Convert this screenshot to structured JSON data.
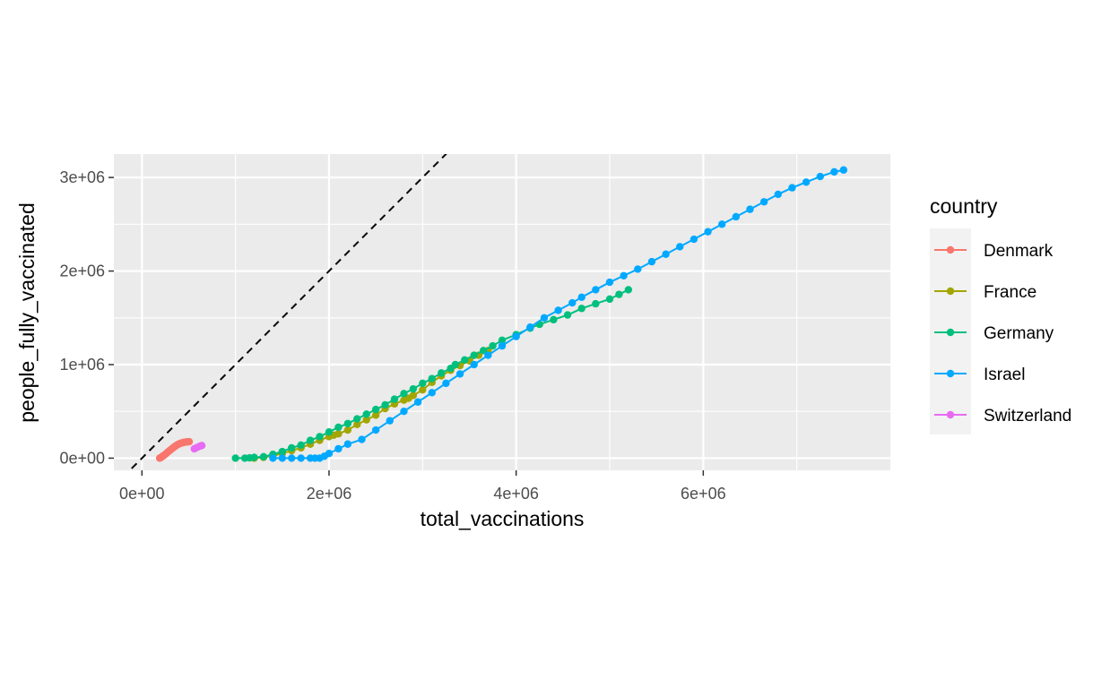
{
  "chart_data": {
    "type": "line",
    "title": "",
    "xlabel": "total_vaccinations",
    "ylabel": "people_fully_vaccinated",
    "xlim": [
      -300000,
      8000000
    ],
    "ylim": [
      -130000,
      3250000
    ],
    "x_ticks": [
      0,
      2000000,
      4000000,
      6000000
    ],
    "x_tick_labels": [
      "0e+00",
      "2e+06",
      "4e+06",
      "6e+06"
    ],
    "y_ticks": [
      0,
      1000000,
      2000000,
      3000000
    ],
    "y_tick_labels": [
      "0e+00",
      "1e+06",
      "2e+06",
      "3e+06"
    ],
    "grid": true,
    "legend": {
      "title": "country",
      "position": "right"
    },
    "reference_line": {
      "slope": 1,
      "intercept": 0,
      "style": "dashed",
      "color": "#000000"
    },
    "series": [
      {
        "name": "Denmark",
        "color": "#F8766D",
        "points": [
          [
            190000,
            0
          ],
          [
            200000,
            5000
          ],
          [
            210000,
            12000
          ],
          [
            220000,
            20000
          ],
          [
            235000,
            30000
          ],
          [
            250000,
            42000
          ],
          [
            265000,
            55000
          ],
          [
            280000,
            68000
          ],
          [
            295000,
            80000
          ],
          [
            310000,
            92000
          ],
          [
            325000,
            104000
          ],
          [
            340000,
            116000
          ],
          [
            355000,
            127000
          ],
          [
            370000,
            137000
          ],
          [
            385000,
            146000
          ],
          [
            400000,
            153000
          ],
          [
            415000,
            159000
          ],
          [
            430000,
            164000
          ],
          [
            445000,
            168000
          ],
          [
            460000,
            171000
          ],
          [
            475000,
            173000
          ],
          [
            490000,
            175000
          ],
          [
            505000,
            176000
          ]
        ]
      },
      {
        "name": "France",
        "color": "#A3A500",
        "points": [
          [
            1200000,
            0
          ],
          [
            1300000,
            8000
          ],
          [
            1400000,
            25000
          ],
          [
            1500000,
            50000
          ],
          [
            1600000,
            80000
          ],
          [
            1700000,
            110000
          ],
          [
            1800000,
            150000
          ],
          [
            1900000,
            190000
          ],
          [
            2000000,
            230000
          ],
          [
            2050000,
            245000
          ],
          [
            2100000,
            260000
          ],
          [
            2200000,
            300000
          ],
          [
            2300000,
            360000
          ],
          [
            2400000,
            410000
          ],
          [
            2500000,
            460000
          ],
          [
            2600000,
            530000
          ],
          [
            2700000,
            580000
          ],
          [
            2800000,
            620000
          ],
          [
            2850000,
            640000
          ],
          [
            2900000,
            670000
          ],
          [
            3000000,
            730000
          ],
          [
            3100000,
            810000
          ],
          [
            3200000,
            880000
          ],
          [
            3300000,
            940000
          ],
          [
            3400000,
            990000
          ],
          [
            3500000,
            1040000
          ],
          [
            3600000,
            1100000
          ],
          [
            3700000,
            1150000
          ]
        ]
      },
      {
        "name": "Germany",
        "color": "#00BF7D",
        "points": [
          [
            1000000,
            0
          ],
          [
            1100000,
            0
          ],
          [
            1150000,
            3000
          ],
          [
            1200000,
            8000
          ],
          [
            1300000,
            15000
          ],
          [
            1400000,
            40000
          ],
          [
            1500000,
            70000
          ],
          [
            1600000,
            110000
          ],
          [
            1700000,
            140000
          ],
          [
            1800000,
            190000
          ],
          [
            1900000,
            230000
          ],
          [
            2000000,
            280000
          ],
          [
            2100000,
            330000
          ],
          [
            2200000,
            370000
          ],
          [
            2300000,
            420000
          ],
          [
            2400000,
            470000
          ],
          [
            2500000,
            520000
          ],
          [
            2600000,
            570000
          ],
          [
            2700000,
            630000
          ],
          [
            2800000,
            690000
          ],
          [
            2900000,
            740000
          ],
          [
            3000000,
            800000
          ],
          [
            3100000,
            850000
          ],
          [
            3200000,
            910000
          ],
          [
            3300000,
            960000
          ],
          [
            3350000,
            1000000
          ],
          [
            3450000,
            1050000
          ],
          [
            3550000,
            1100000
          ],
          [
            3650000,
            1150000
          ],
          [
            3750000,
            1200000
          ],
          [
            3850000,
            1260000
          ],
          [
            4000000,
            1320000
          ],
          [
            4150000,
            1390000
          ],
          [
            4250000,
            1430000
          ],
          [
            4400000,
            1480000
          ],
          [
            4550000,
            1530000
          ],
          [
            4700000,
            1600000
          ],
          [
            4850000,
            1650000
          ],
          [
            5000000,
            1700000
          ],
          [
            5100000,
            1750000
          ],
          [
            5200000,
            1800000
          ]
        ]
      },
      {
        "name": "Israel",
        "color": "#00A9FF",
        "points": [
          [
            1400000,
            0
          ],
          [
            1500000,
            0
          ],
          [
            1600000,
            0
          ],
          [
            1700000,
            0
          ],
          [
            1800000,
            0
          ],
          [
            1850000,
            0
          ],
          [
            1900000,
            0
          ],
          [
            1950000,
            20000
          ],
          [
            2000000,
            50000
          ],
          [
            2100000,
            100000
          ],
          [
            2200000,
            150000
          ],
          [
            2350000,
            200000
          ],
          [
            2500000,
            300000
          ],
          [
            2650000,
            400000
          ],
          [
            2800000,
            500000
          ],
          [
            2950000,
            600000
          ],
          [
            3100000,
            700000
          ],
          [
            3250000,
            800000
          ],
          [
            3400000,
            900000
          ],
          [
            3550000,
            1000000
          ],
          [
            3700000,
            1100000
          ],
          [
            3850000,
            1200000
          ],
          [
            4000000,
            1300000
          ],
          [
            4150000,
            1400000
          ],
          [
            4300000,
            1500000
          ],
          [
            4450000,
            1580000
          ],
          [
            4600000,
            1660000
          ],
          [
            4700000,
            1720000
          ],
          [
            4850000,
            1800000
          ],
          [
            5000000,
            1880000
          ],
          [
            5150000,
            1950000
          ],
          [
            5300000,
            2020000
          ],
          [
            5450000,
            2100000
          ],
          [
            5600000,
            2180000
          ],
          [
            5750000,
            2260000
          ],
          [
            5900000,
            2340000
          ],
          [
            6050000,
            2420000
          ],
          [
            6200000,
            2500000
          ],
          [
            6350000,
            2580000
          ],
          [
            6500000,
            2660000
          ],
          [
            6650000,
            2740000
          ],
          [
            6800000,
            2820000
          ],
          [
            6950000,
            2890000
          ],
          [
            7100000,
            2950000
          ],
          [
            7250000,
            3010000
          ],
          [
            7400000,
            3060000
          ],
          [
            7500000,
            3080000
          ]
        ]
      },
      {
        "name": "Switzerland",
        "color": "#E76BF3",
        "points": [
          [
            560000,
            100000
          ],
          [
            590000,
            115000
          ],
          [
            620000,
            128000
          ],
          [
            640000,
            135000
          ]
        ]
      }
    ]
  }
}
